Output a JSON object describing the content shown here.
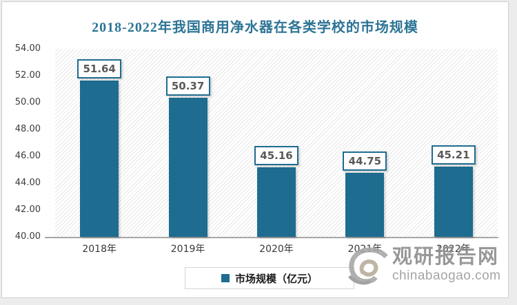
{
  "chart_data": {
    "type": "bar",
    "title": "2018-2022年我国商用净水器在各类学校的市场规模",
    "categories": [
      "2018年",
      "2019年",
      "2020年",
      "2021年",
      "2022年"
    ],
    "series": [
      {
        "name": "市场规模（亿元）",
        "values": [
          51.64,
          50.37,
          45.16,
          44.75,
          45.21
        ]
      }
    ],
    "value_labels": [
      "51.64",
      "50.37",
      "45.16",
      "44.75",
      "45.21"
    ],
    "xlabel": "",
    "ylabel": "",
    "ylim": [
      40,
      54
    ],
    "ytick_step": 2,
    "ytick_labels": [
      "54.00",
      "52.00",
      "50.00",
      "48.00",
      "46.00",
      "44.00",
      "42.00",
      "40.00"
    ],
    "grid": false,
    "legend_position": "bottom",
    "bar_color": "#1E6C90",
    "plot_background": "diagonal-hatch"
  },
  "legend": {
    "label": "市场规模（亿元）",
    "marker_color": "#1E6C90"
  },
  "watermark": {
    "logo": "chinabaogao-swirl-logo",
    "brand": "观研报告网",
    "domain": "chinabaogao.com"
  },
  "colors": {
    "title": "#2D7495",
    "bar": "#1E6C90",
    "value_label_text": "#595959",
    "axis_line": "#A6A6A6",
    "watermark_gray": "#8D8D8D",
    "watermark_tan": "#B7AE9C"
  }
}
